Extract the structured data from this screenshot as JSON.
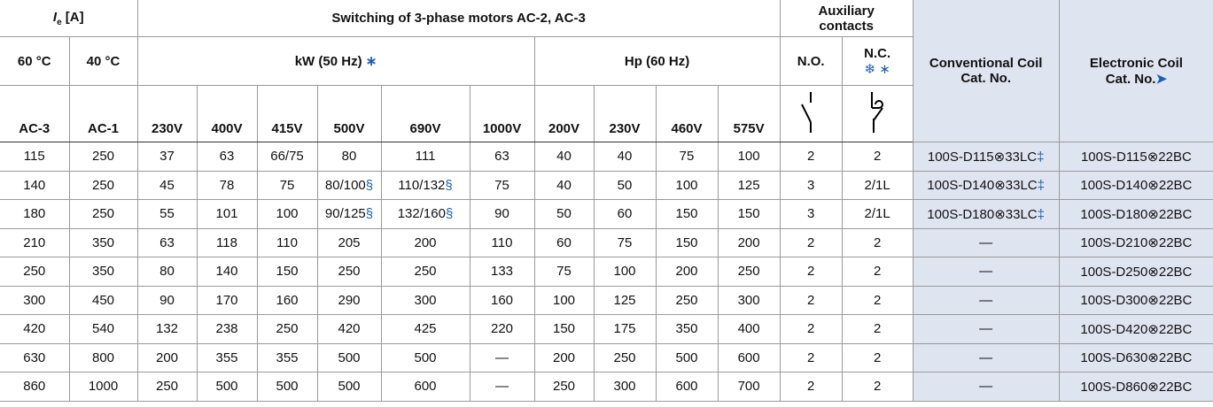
{
  "header": {
    "ie": "I",
    "ie_sub": "e",
    "ie_unit": "[A]",
    "switching": "Switching of 3-phase motors AC-2, AC-3",
    "auxiliary": [
      "Auxiliary",
      "contacts"
    ],
    "t60": "60 °C",
    "t40": "40 °C",
    "kw": "kW (50 Hz)",
    "kw_mark": "∗",
    "hp": "Hp (60 Hz)",
    "no": "N.O.",
    "nc": "N.C.",
    "nc_marks": "❄ ∗",
    "columns": [
      "AC-3",
      "AC-1",
      "230V",
      "400V",
      "415V",
      "500V",
      "690V",
      "1000V",
      "200V",
      "230V",
      "460V",
      "575V"
    ],
    "conventional": [
      "Conventional Coil",
      "Cat. No."
    ],
    "electronic": [
      "Electronic Coil",
      "Cat. No."
    ],
    "electronic_mark": "➤"
  },
  "rows": [
    [
      "115",
      "250",
      "37",
      "63",
      "66/75",
      "80",
      "111",
      "63",
      "40",
      "40",
      "75",
      "100",
      "2",
      "2",
      {
        "text": "100S-D115⊗33LC",
        "mark": "‡"
      },
      "100S-D115⊗22BC"
    ],
    [
      "140",
      "250",
      "45",
      "78",
      "75",
      {
        "text": "80/100",
        "mark": "§"
      },
      {
        "text": "110/132",
        "mark": "§"
      },
      "75",
      "40",
      "50",
      "100",
      "125",
      "3",
      "2/1L",
      {
        "text": "100S-D140⊗33LC",
        "mark": "‡"
      },
      "100S-D140⊗22BC"
    ],
    [
      "180",
      "250",
      "55",
      "101",
      "100",
      {
        "text": "90/125",
        "mark": "§"
      },
      {
        "text": "132/160",
        "mark": "§"
      },
      "90",
      "50",
      "60",
      "150",
      "150",
      "3",
      "2/1L",
      {
        "text": "100S-D180⊗33LC",
        "mark": "‡"
      },
      "100S-D180⊗22BC"
    ],
    [
      "210",
      "350",
      "63",
      "118",
      "110",
      "205",
      "200",
      "110",
      "60",
      "75",
      "150",
      "200",
      "2",
      "2",
      "—",
      "100S-D210⊗22BC"
    ],
    [
      "250",
      "350",
      "80",
      "140",
      "150",
      "250",
      "250",
      "133",
      "75",
      "100",
      "200",
      "250",
      "2",
      "2",
      "—",
      "100S-D250⊗22BC"
    ],
    [
      "300",
      "450",
      "90",
      "170",
      "160",
      "290",
      "300",
      "160",
      "100",
      "125",
      "250",
      "300",
      "2",
      "2",
      "—",
      "100S-D300⊗22BC"
    ],
    [
      "420",
      "540",
      "132",
      "238",
      "250",
      "420",
      "425",
      "220",
      "150",
      "175",
      "350",
      "400",
      "2",
      "2",
      "—",
      "100S-D420⊗22BC"
    ],
    [
      "630",
      "800",
      "200",
      "355",
      "355",
      "500",
      "500",
      "—",
      "200",
      "250",
      "500",
      "600",
      "2",
      "2",
      "—",
      "100S-D630⊗22BC"
    ],
    [
      "860",
      "1000",
      "250",
      "500",
      "500",
      "500",
      "600",
      "—",
      "250",
      "300",
      "600",
      "700",
      "2",
      "2",
      "—",
      "100S-D860⊗22BC"
    ]
  ]
}
